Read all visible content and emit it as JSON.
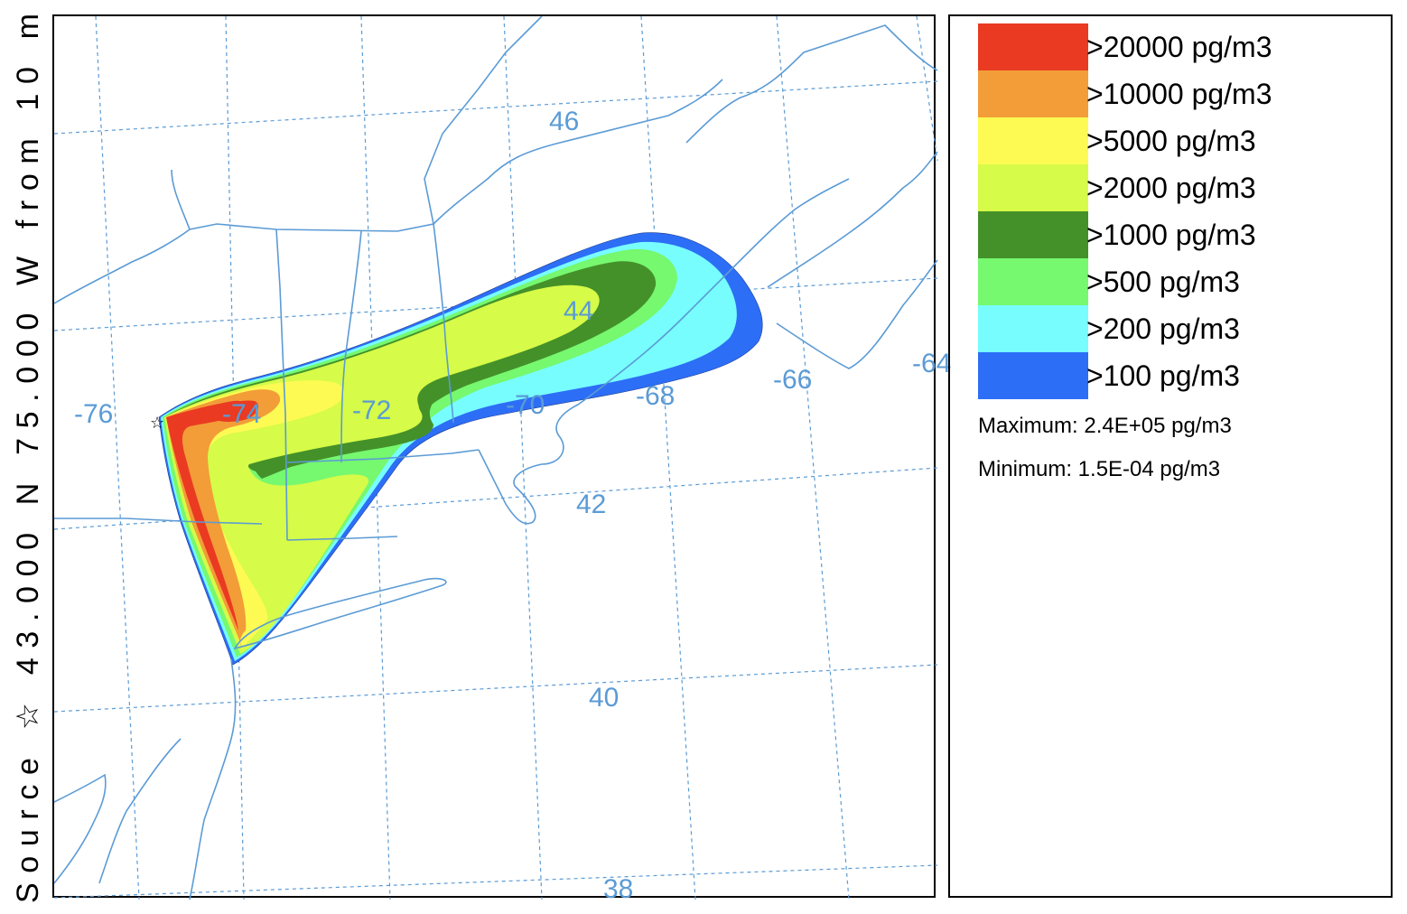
{
  "side_label": "Source ☆ 43.000 N  75.000 W    from    10 m",
  "map": {
    "lon_labels": [
      "-76",
      "-74",
      "-72",
      "-70",
      "-68",
      "-66",
      "-64"
    ],
    "lat_labels": [
      "46",
      "44",
      "42",
      "40",
      "38"
    ],
    "colors": {
      "grid": "#5b9bd5",
      "coast": "#5b9bd5"
    }
  },
  "legend": {
    "items": [
      {
        "label": ">20000 pg/m3",
        "color": "#ea3a22"
      },
      {
        "label": ">10000 pg/m3",
        "color": "#f29d38"
      },
      {
        "label": ">5000 pg/m3",
        "color": "#fdfa53"
      },
      {
        "label": ">2000 pg/m3",
        "color": "#d6fb48"
      },
      {
        "label": ">1000 pg/m3",
        "color": "#44912a"
      },
      {
        "label": ">500 pg/m3",
        "color": "#76f86f"
      },
      {
        "label": ">200 pg/m3",
        "color": "#77fdfe"
      },
      {
        "label": ">100 pg/m3",
        "color": "#2d6ef6"
      }
    ],
    "maximum": "Maximum: 2.4E+05 pg/m3",
    "minimum": "Minimum: 1.5E-04 pg/m3"
  }
}
